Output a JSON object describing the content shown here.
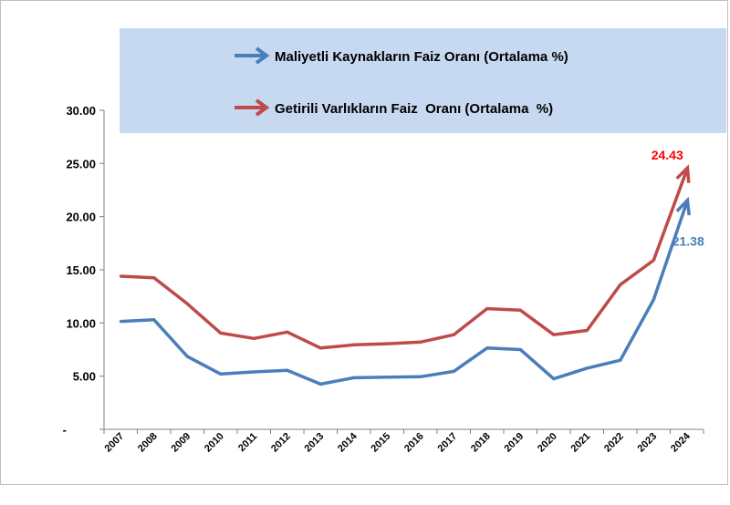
{
  "chart_data": {
    "type": "line",
    "categories": [
      "2007",
      "2008",
      "2009",
      "2010",
      "2011",
      "2012",
      "2013",
      "2014",
      "2015",
      "2016",
      "2017",
      "2018",
      "2019",
      "2020",
      "2021",
      "2022",
      "2023",
      "2024"
    ],
    "series": [
      {
        "name": "Maliyetli Kaynakların Faiz Oranı (Ortalama %)",
        "color": "#4a7ebb",
        "values": [
          10.15,
          10.3,
          6.85,
          5.2,
          5.4,
          5.55,
          4.25,
          4.85,
          4.9,
          4.95,
          5.45,
          7.65,
          7.5,
          4.75,
          5.75,
          6.5,
          12.2,
          21.38
        ]
      },
      {
        "name": "Getirili Varlıkların Faiz  Oranı (Ortalama  %)",
        "color": "#be4b48",
        "values": [
          14.4,
          14.25,
          11.8,
          9.05,
          8.55,
          9.15,
          7.65,
          7.95,
          8.05,
          8.2,
          8.9,
          11.35,
          11.2,
          8.9,
          9.3,
          13.6,
          15.9,
          24.43
        ]
      }
    ],
    "data_labels": [
      {
        "series": 0,
        "index": 17,
        "text": "21.38",
        "color": "#4a7ebb"
      },
      {
        "series": 1,
        "index": 17,
        "text": "24.43",
        "color": "#ff0000"
      }
    ],
    "y_ticks": [
      "-",
      "5.00",
      "10.00",
      "15.00",
      "20.00",
      "25.00",
      "30.00"
    ],
    "ylim": [
      0,
      30
    ],
    "legend_position": "top-center",
    "legend_background": "#c6d9f1",
    "grid": false
  }
}
